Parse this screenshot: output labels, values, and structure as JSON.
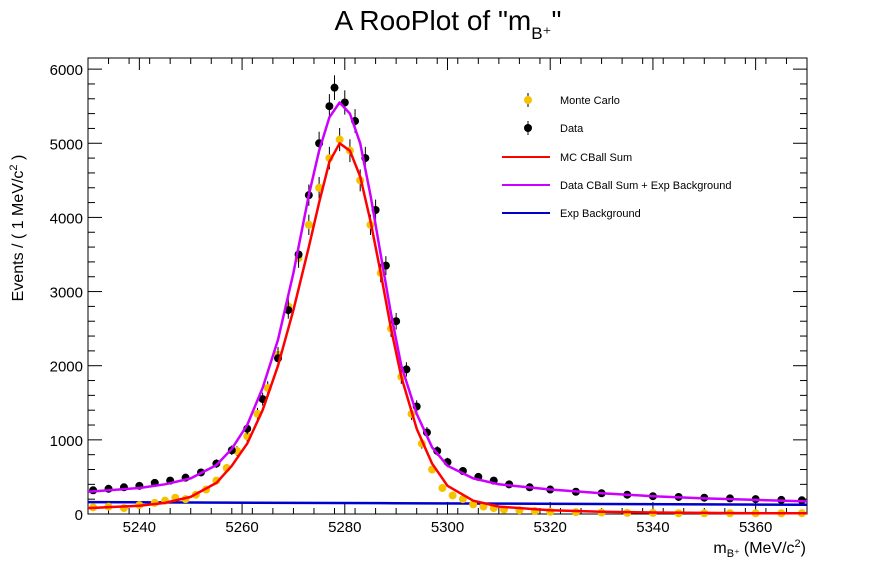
{
  "chart_data": {
    "type": "scatter",
    "title": "A RooPlot of \"m",
    "title_sub": "B⁺",
    "title_end": "\"",
    "xlabel": "m",
    "xlabel_sub": "B⁺",
    "xlabel_unit": "(MeV/c",
    "xlabel_unit_sup": "2",
    "xlabel_unit_end": ")",
    "ylabel": "Events / ( 1 MeV/c",
    "ylabel_sup": "2",
    "ylabel_end": " )",
    "xlim": [
      5230,
      5370
    ],
    "ylim": [
      0,
      6150
    ],
    "x_ticks": [
      5240,
      5260,
      5280,
      5300,
      5320,
      5340,
      5360
    ],
    "y_ticks": [
      0,
      1000,
      2000,
      3000,
      4000,
      5000,
      6000
    ],
    "legend_position": "top-right",
    "grid": false,
    "series": [
      {
        "name": "Monte Carlo",
        "kind": "points",
        "color": "#f5c200",
        "x": [
          5231,
          5234,
          5237,
          5240,
          5243,
          5245,
          5247,
          5249,
          5251,
          5253,
          5255,
          5257,
          5259,
          5261,
          5263,
          5265,
          5267,
          5269,
          5271,
          5273,
          5275,
          5277,
          5279,
          5281,
          5283,
          5285,
          5287,
          5289,
          5291,
          5293,
          5295,
          5297,
          5299,
          5301,
          5303,
          5305,
          5307,
          5309,
          5311,
          5314,
          5317,
          5320,
          5325,
          5330,
          5335,
          5340,
          5345,
          5350,
          5355,
          5360,
          5365,
          5369
        ],
        "y": [
          90,
          100,
          80,
          120,
          150,
          180,
          220,
          200,
          260,
          330,
          450,
          620,
          850,
          1050,
          1350,
          1700,
          2150,
          2800,
          3450,
          3900,
          4400,
          4800,
          5050,
          4900,
          4500,
          3900,
          3250,
          2500,
          1850,
          1350,
          950,
          600,
          350,
          250,
          200,
          130,
          100,
          80,
          60,
          50,
          40,
          30,
          25,
          20,
          15,
          15,
          10,
          10,
          10,
          10,
          10,
          10
        ]
      },
      {
        "name": "Data",
        "kind": "points",
        "color": "#000000",
        "x": [
          5231,
          5234,
          5237,
          5240,
          5243,
          5246,
          5249,
          5252,
          5255,
          5258,
          5261,
          5264,
          5267,
          5269,
          5271,
          5273,
          5275,
          5277,
          5278,
          5280,
          5282,
          5284,
          5286,
          5288,
          5290,
          5292,
          5294,
          5296,
          5298,
          5300,
          5303,
          5306,
          5309,
          5312,
          5316,
          5320,
          5325,
          5330,
          5335,
          5340,
          5345,
          5350,
          5355,
          5360,
          5365,
          5369
        ],
        "y": [
          320,
          340,
          360,
          380,
          420,
          450,
          490,
          560,
          680,
          860,
          1150,
          1550,
          2100,
          2750,
          3500,
          4300,
          5000,
          5500,
          5750,
          5550,
          5300,
          4800,
          4100,
          3350,
          2600,
          1950,
          1450,
          1100,
          850,
          700,
          580,
          500,
          450,
          400,
          360,
          330,
          300,
          280,
          260,
          240,
          230,
          220,
          210,
          200,
          190,
          185
        ]
      },
      {
        "name": "MC CBall Sum",
        "kind": "line",
        "color": "#ff0000",
        "x": [
          5230,
          5240,
          5245,
          5250,
          5255,
          5258,
          5261,
          5264,
          5267,
          5270,
          5273,
          5275,
          5277,
          5279,
          5281,
          5283,
          5285,
          5287,
          5289,
          5291,
          5294,
          5297,
          5300,
          5305,
          5310,
          5320,
          5330,
          5340,
          5350,
          5360,
          5370
        ],
        "y": [
          80,
          110,
          150,
          230,
          420,
          650,
          950,
          1400,
          2000,
          2750,
          3600,
          4200,
          4750,
          5000,
          4900,
          4550,
          3950,
          3250,
          2500,
          1850,
          1150,
          680,
          380,
          180,
          100,
          50,
          30,
          20,
          15,
          10,
          10
        ]
      },
      {
        "name": "Data CBall Sum + Exp Background",
        "kind": "line",
        "color": "#cc00ff",
        "x": [
          5230,
          5240,
          5245,
          5250,
          5255,
          5258,
          5261,
          5264,
          5267,
          5270,
          5273,
          5275,
          5277,
          5279,
          5281,
          5283,
          5285,
          5287,
          5289,
          5291,
          5294,
          5297,
          5300,
          5305,
          5310,
          5320,
          5330,
          5340,
          5350,
          5360,
          5370
        ],
        "y": [
          300,
          350,
          400,
          480,
          660,
          880,
          1200,
          1700,
          2350,
          3250,
          4300,
          4900,
          5350,
          5550,
          5400,
          5000,
          4300,
          3500,
          2700,
          2000,
          1350,
          900,
          650,
          480,
          400,
          330,
          280,
          240,
          210,
          190,
          170
        ]
      },
      {
        "name": "Exp Background",
        "kind": "line",
        "color": "#0000cc",
        "x": [
          5230,
          5250,
          5270,
          5290,
          5310,
          5330,
          5350,
          5370
        ],
        "y": [
          160,
          155,
          150,
          145,
          140,
          135,
          130,
          125
        ]
      }
    ]
  }
}
